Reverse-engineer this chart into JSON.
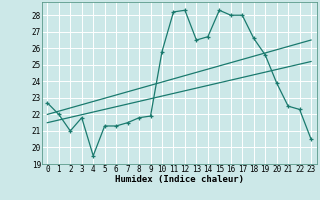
{
  "xlabel": "Humidex (Indice chaleur)",
  "bg_color": "#cce8e8",
  "grid_color": "#ffffff",
  "line_color": "#1a7a6e",
  "xlim": [
    -0.5,
    23.5
  ],
  "ylim": [
    19,
    28.8
  ],
  "xticks": [
    0,
    1,
    2,
    3,
    4,
    5,
    6,
    7,
    8,
    9,
    10,
    11,
    12,
    13,
    14,
    15,
    16,
    17,
    18,
    19,
    20,
    21,
    22,
    23
  ],
  "yticks": [
    19,
    20,
    21,
    22,
    23,
    24,
    25,
    26,
    27,
    28
  ],
  "line1_x": [
    0,
    1,
    2,
    3,
    4,
    5,
    6,
    7,
    8,
    9,
    10,
    11,
    12,
    13,
    14,
    15,
    16,
    17,
    18,
    19,
    20,
    21,
    22,
    23
  ],
  "line1_y": [
    22.7,
    22.0,
    21.0,
    21.8,
    19.5,
    21.3,
    21.3,
    21.5,
    21.8,
    21.9,
    25.8,
    28.2,
    28.3,
    26.5,
    26.7,
    28.3,
    28.0,
    28.0,
    26.6,
    25.6,
    23.9,
    22.5,
    22.3,
    20.5
  ],
  "line2_x": [
    0,
    23
  ],
  "line2_y": [
    22.0,
    26.5
  ],
  "line3_x": [
    0,
    23
  ],
  "line3_y": [
    21.5,
    25.2
  ],
  "font_name": "monospace",
  "axis_fontsize": 6.5,
  "tick_fontsize": 5.5
}
